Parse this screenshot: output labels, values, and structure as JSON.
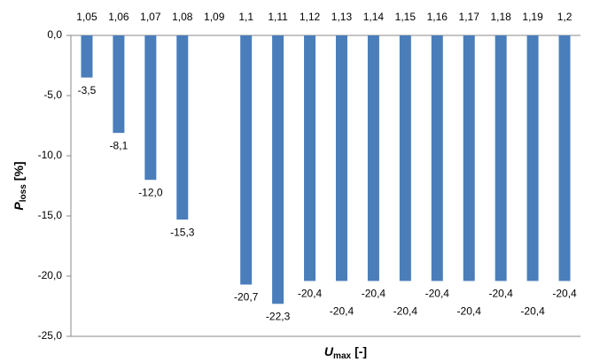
{
  "chart_data": {
    "type": "bar",
    "categories": [
      "1,05",
      "1,06",
      "1,07",
      "1,08",
      "1,09",
      "1,1",
      "1,11",
      "1,12",
      "1,13",
      "1,14",
      "1,15",
      "1,16",
      "1,17",
      "1,18",
      "1,19",
      "1,2"
    ],
    "values": [
      -3.5,
      -8.1,
      -12.0,
      -15.3,
      null,
      -20.7,
      -22.3,
      -20.4,
      -20.4,
      -20.4,
      -20.4,
      -20.4,
      -20.4,
      -20.4,
      -20.4,
      -20.4
    ],
    "value_labels": [
      "-3,5",
      "-8,1",
      "-12,0",
      "-15,3",
      null,
      "-20,7",
      "-22,3",
      "-20,4",
      "-20,4",
      "-20,4",
      "-20,4",
      "-20,4",
      "-20,4",
      "-20,4",
      "-20,4",
      "-20,4"
    ],
    "color": "#4a7ebb",
    "ylim": [
      -25,
      0
    ],
    "yticks": [
      {
        "value": 0,
        "label": "0,0"
      },
      {
        "value": -5,
        "label": "-5,0"
      },
      {
        "value": -10,
        "label": "-10,0"
      },
      {
        "value": -15,
        "label": "-15,0"
      },
      {
        "value": -20,
        "label": "-20,0"
      },
      {
        "value": -25,
        "label": "-25,0"
      }
    ],
    "grid": false,
    "y_label": {
      "symbol": "P",
      "subscript": "loss",
      "unit": "[%]"
    },
    "x_label": {
      "symbol": "U",
      "subscript": "max",
      "unit": "[-]"
    }
  }
}
